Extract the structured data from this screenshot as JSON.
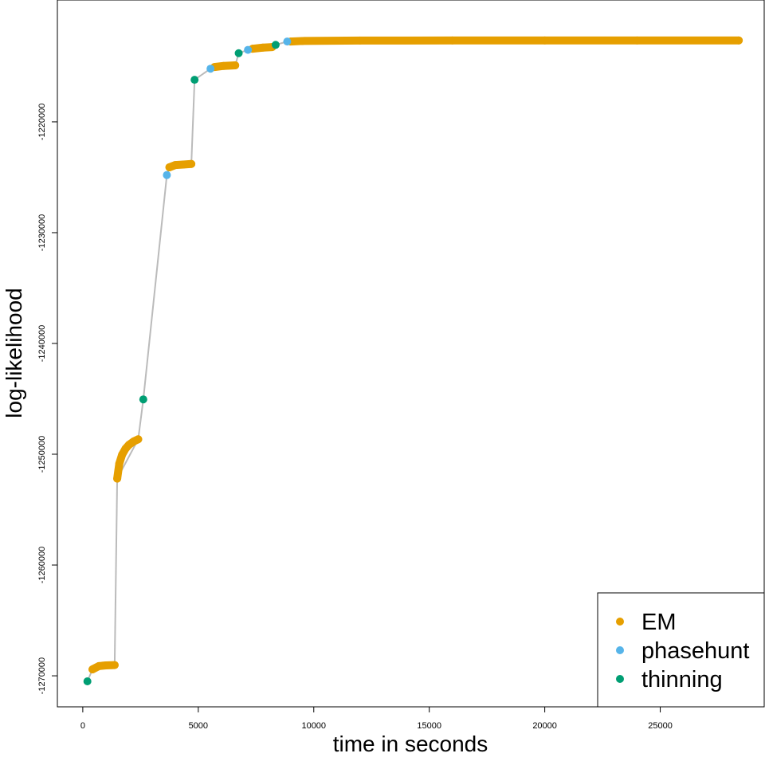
{
  "chart_data": {
    "type": "scatter",
    "title": "",
    "xlabel": "time in seconds",
    "ylabel": "log-likelihood",
    "xlim": [
      -1100,
      29500
    ],
    "ylim": [
      -1272800,
      -1209000
    ],
    "xticks": [
      0,
      5000,
      10000,
      15000,
      20000,
      25000
    ],
    "xtick_labels": [
      "0",
      "5000",
      "10000",
      "15000",
      "20000",
      "25000"
    ],
    "yticks": [
      -1270000,
      -1260000,
      -1250000,
      -1240000,
      -1230000,
      -1220000
    ],
    "ytick_labels": [
      "-1270000",
      "-1260000",
      "-1250000",
      "-1240000",
      "-1230000",
      "-1220000"
    ],
    "grid": false,
    "legend_position": "bottom-right",
    "line_color": "#bbbbbb",
    "series": [
      {
        "name": "EM",
        "color": "#E69F00",
        "points": [
          [
            420,
            -1269420
          ],
          [
            700,
            -1269120
          ],
          [
            1000,
            -1269060
          ],
          [
            1380,
            -1269030
          ],
          [
            1490,
            -1252200
          ],
          [
            1580,
            -1250850
          ],
          [
            1700,
            -1250050
          ],
          [
            1850,
            -1249500
          ],
          [
            2000,
            -1249150
          ],
          [
            2200,
            -1248850
          ],
          [
            2400,
            -1248650
          ],
          [
            3750,
            -1224100
          ],
          [
            4000,
            -1223900
          ],
          [
            4350,
            -1223850
          ],
          [
            4700,
            -1223800
          ],
          [
            5700,
            -1215050
          ],
          [
            6100,
            -1214950
          ],
          [
            6600,
            -1214900
          ],
          [
            7350,
            -1213400
          ],
          [
            7800,
            -1213300
          ],
          [
            8200,
            -1213250
          ],
          [
            9000,
            -1212750
          ],
          [
            9500,
            -1212700
          ],
          [
            12000,
            -1212660
          ],
          [
            16000,
            -1212650
          ],
          [
            20000,
            -1212650
          ],
          [
            24000,
            -1212650
          ],
          [
            28400,
            -1212650
          ]
        ],
        "continuous_runs": [
          [
            0,
            3
          ],
          [
            4,
            10
          ],
          [
            11,
            14
          ],
          [
            15,
            17
          ],
          [
            18,
            20
          ],
          [
            21,
            27
          ]
        ]
      },
      {
        "name": "phasehunt",
        "color": "#56B4E9",
        "points": [
          [
            3640,
            -1224800
          ],
          [
            5530,
            -1215200
          ],
          [
            7150,
            -1213500
          ],
          [
            8850,
            -1212750
          ]
        ]
      },
      {
        "name": "thinning",
        "color": "#009E73",
        "points": [
          [
            200,
            -1270500
          ],
          [
            2620,
            -1245050
          ],
          [
            4840,
            -1216200
          ],
          [
            6750,
            -1213800
          ],
          [
            8350,
            -1213050
          ]
        ]
      }
    ],
    "path_order": [
      [
        "thinning",
        0
      ],
      [
        "EM",
        0
      ],
      [
        "EM",
        3
      ],
      [
        "EM",
        4
      ],
      [
        "EM",
        10
      ],
      [
        "thinning",
        1
      ],
      [
        "phasehunt",
        0
      ],
      [
        "EM",
        11
      ],
      [
        "EM",
        14
      ],
      [
        "thinning",
        2
      ],
      [
        "phasehunt",
        1
      ],
      [
        "EM",
        15
      ],
      [
        "EM",
        17
      ],
      [
        "thinning",
        3
      ],
      [
        "phasehunt",
        2
      ],
      [
        "EM",
        18
      ],
      [
        "EM",
        20
      ],
      [
        "thinning",
        4
      ],
      [
        "phasehunt",
        3
      ],
      [
        "EM",
        21
      ],
      [
        "EM",
        27
      ]
    ]
  }
}
